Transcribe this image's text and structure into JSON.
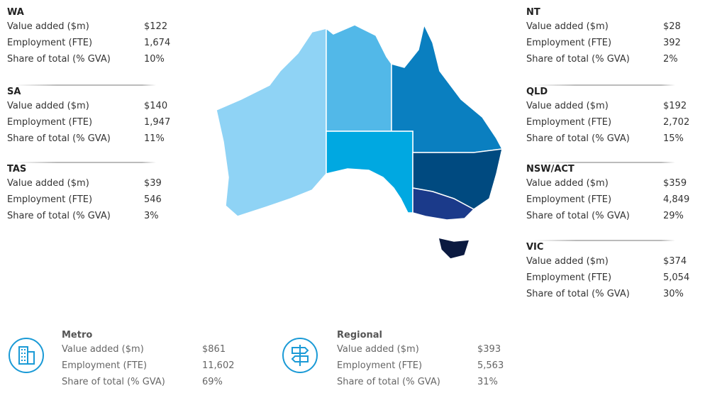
{
  "regions": [
    {
      "name": "WA",
      "rows": [
        {
          "label": "Value added ($m)",
          "value": "$122"
        },
        {
          "label": "Employment (FTE)",
          "value": "1,674"
        },
        {
          "label": "Share of total (% GVA)",
          "value": "10%"
        }
      ]
    },
    {
      "name": "SA",
      "rows": [
        {
          "label": "Value added ($m)",
          "value": "$140"
        },
        {
          "label": "Employment (FTE)",
          "value": "1,947"
        },
        {
          "label": "Share of total (% GVA)",
          "value": "11%"
        }
      ]
    },
    {
      "name": "TAS",
      "rows": [
        {
          "label": "Value added ($m)",
          "value": "$39"
        },
        {
          "label": "Employment (FTE)",
          "value": "546"
        },
        {
          "label": "Share of total (% GVA)",
          "value": "3%"
        }
      ]
    },
    {
      "name": "NT",
      "rows": [
        {
          "label": "Value added ($m)",
          "value": "$28"
        },
        {
          "label": "Employment (FTE)",
          "value": "392"
        },
        {
          "label": "Share of total (% GVA)",
          "value": "2%"
        }
      ]
    },
    {
      "name": "QLD",
      "rows": [
        {
          "label": "Value added ($m)",
          "value": "$192"
        },
        {
          "label": "Employment (FTE)",
          "value": "2,702"
        },
        {
          "label": "Share of total (% GVA)",
          "value": "15%"
        }
      ]
    },
    {
      "name": "NSW/ACT",
      "rows": [
        {
          "label": "Value added ($m)",
          "value": "$359"
        },
        {
          "label": "Employment (FTE)",
          "value": "4,849"
        },
        {
          "label": "Share of total (% GVA)",
          "value": "29%"
        }
      ]
    },
    {
      "name": "VIC",
      "rows": [
        {
          "label": "Value added ($m)",
          "value": "$374"
        },
        {
          "label": "Employment (FTE)",
          "value": "5,054"
        },
        {
          "label": "Share of total (% GVA)",
          "value": "30%"
        }
      ]
    }
  ],
  "areas": [
    {
      "name": "Metro",
      "rows": [
        {
          "label": "Value added ($m)",
          "value": "$861"
        },
        {
          "label": "Employment (FTE)",
          "value": "11,602"
        },
        {
          "label": "Share of total (% GVA)",
          "value": "69%"
        }
      ]
    },
    {
      "name": "Regional",
      "rows": [
        {
          "label": "Value added ($m)",
          "value": "$393"
        },
        {
          "label": "Employment (FTE)",
          "value": "5,563"
        },
        {
          "label": "Share of total (% GVA)",
          "value": "31%"
        }
      ]
    }
  ]
}
